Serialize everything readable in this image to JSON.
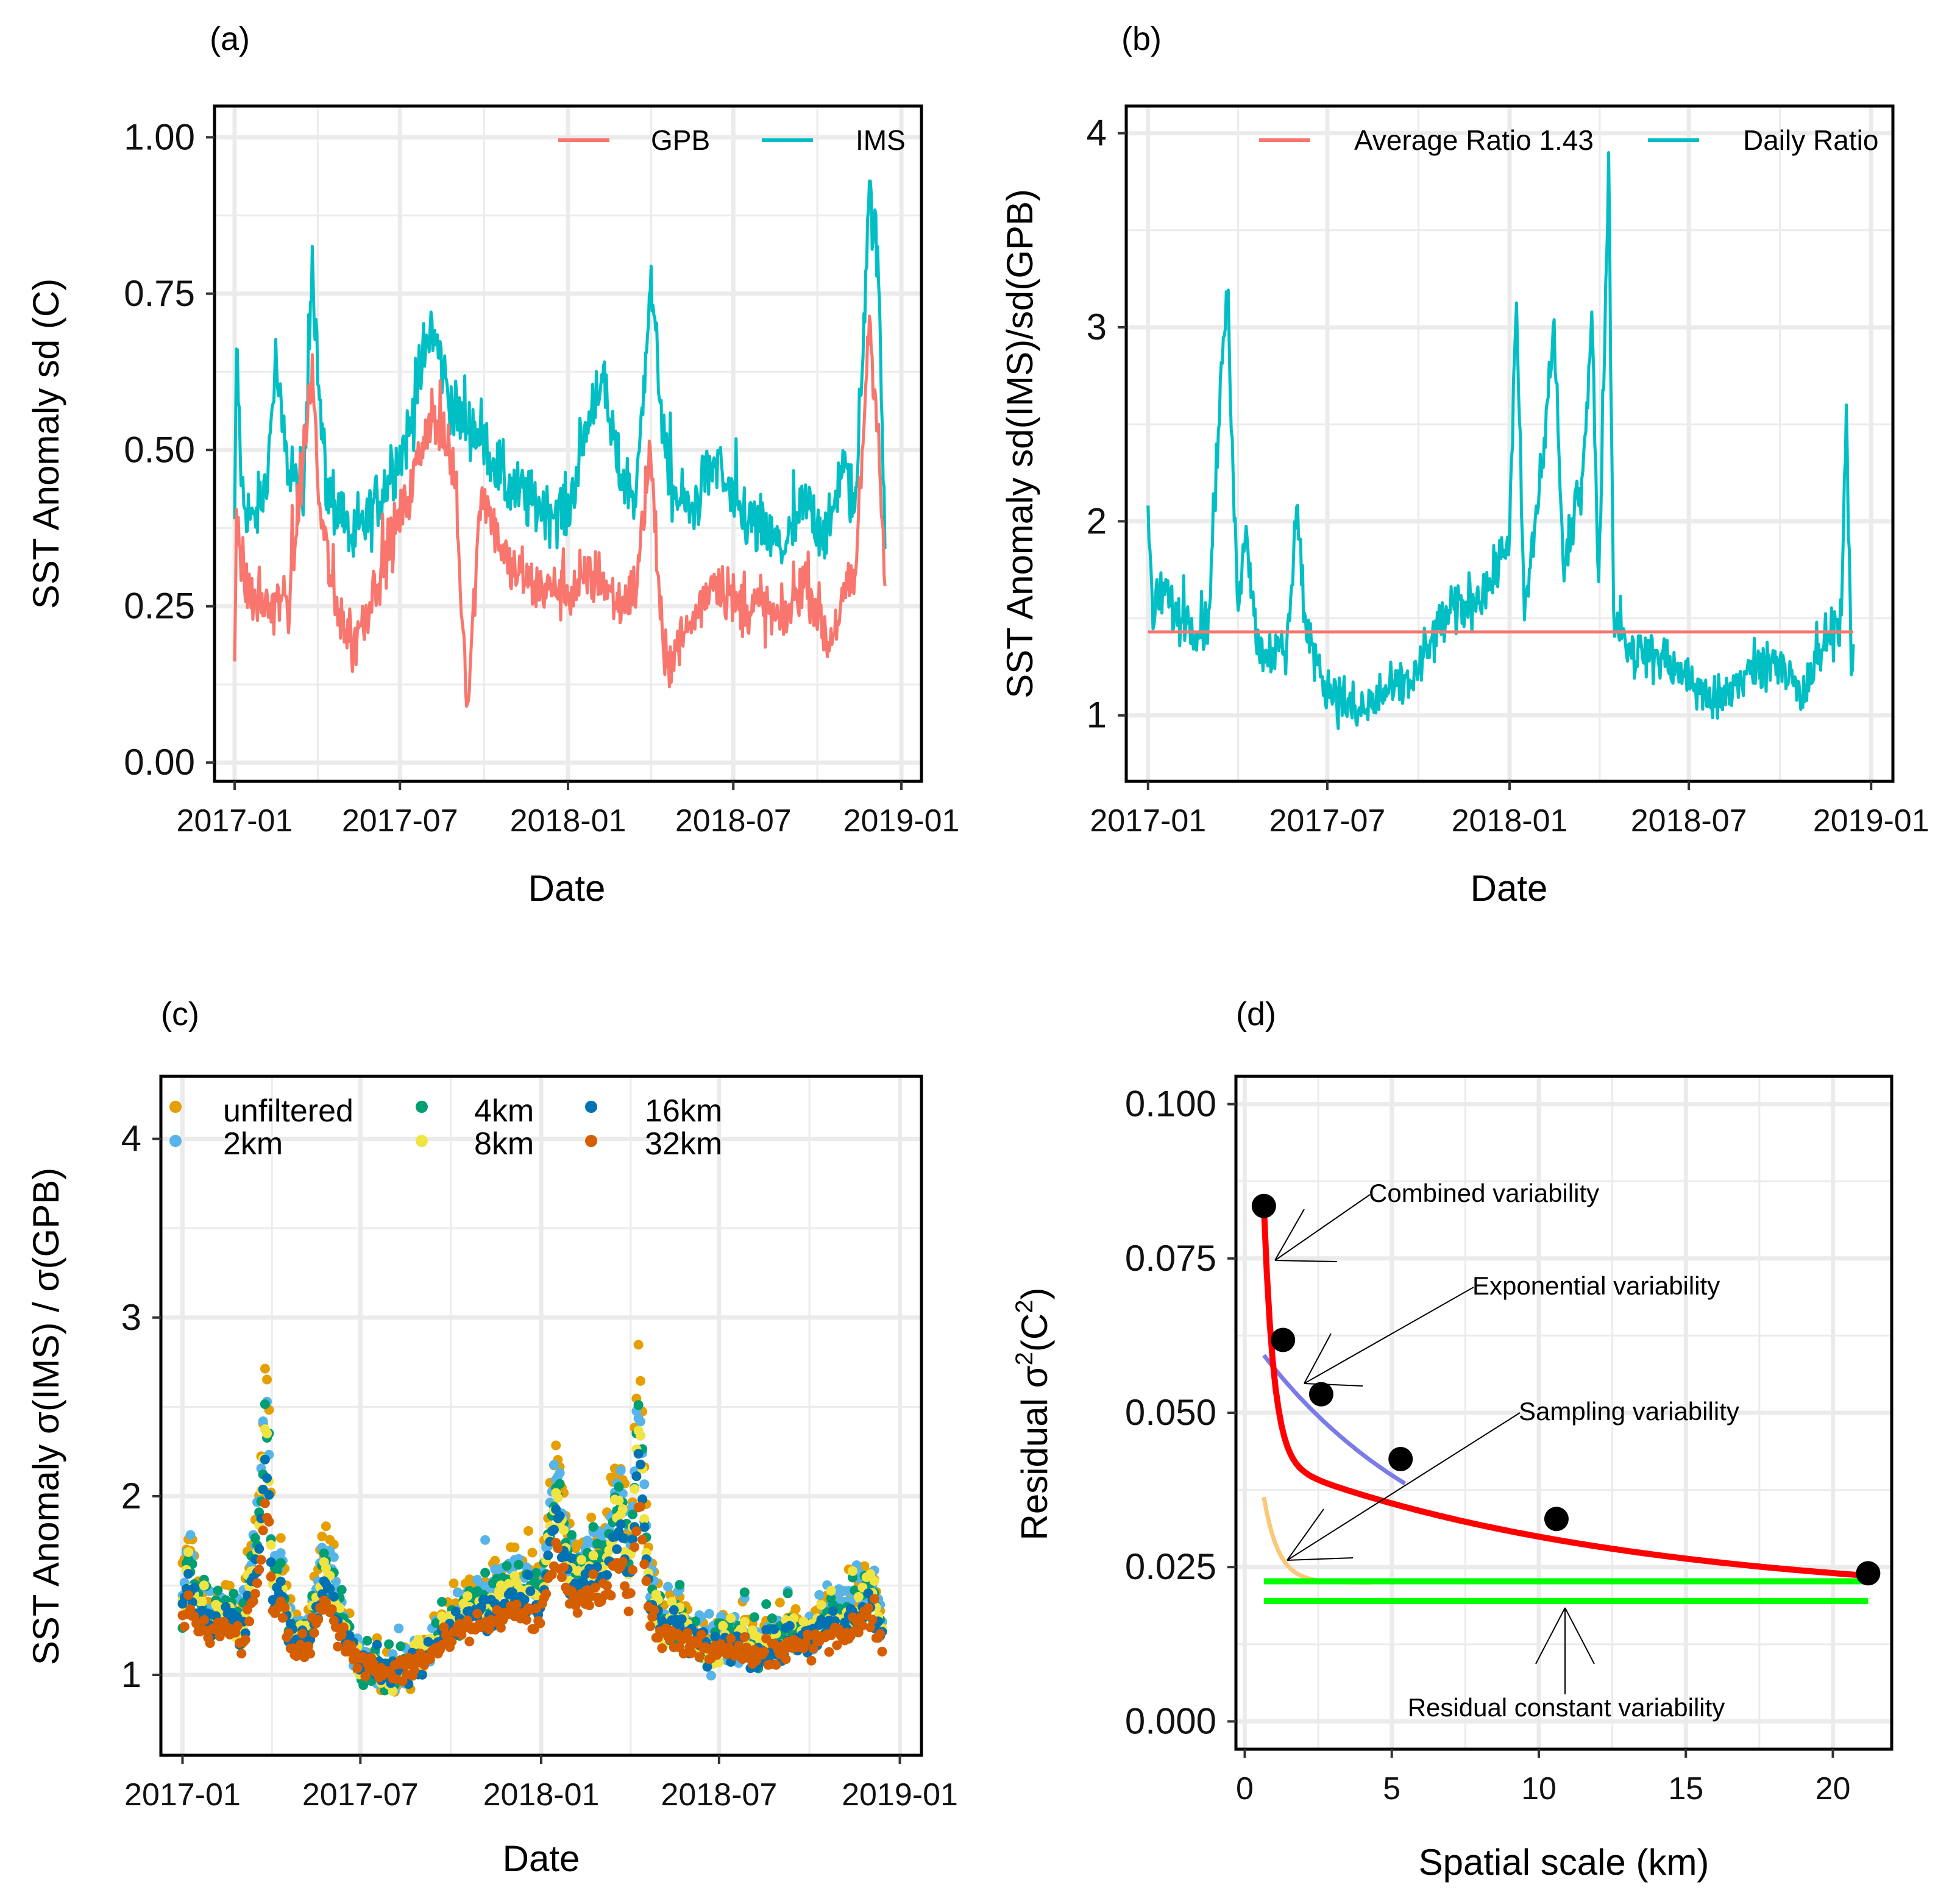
{
  "colors": {
    "gpb": "#F8766D",
    "ims": "#00BFC4",
    "grid": "#EBEBEB",
    "frame": "#000000",
    "scatter": {
      "unfiltered": "#E69F00",
      "2km": "#56B4E9",
      "4km": "#009E73",
      "8km": "#F0E442",
      "16km": "#0072B2",
      "32km": "#D55E00"
    },
    "combined": "#FF0000",
    "exponential": "#7B7BE8",
    "sampling": "#FAC878",
    "constant": "#00FF00"
  },
  "chart_data": [
    {
      "panel": "(a)",
      "type": "line",
      "xlabel": "Date",
      "ylabel": "SST Anomaly sd (C)",
      "xticks": [
        "2017-01",
        "2017-07",
        "2018-01",
        "2018-07",
        "2019-01"
      ],
      "yticks": [
        "0.00",
        "0.25",
        "0.50",
        "0.75",
        "1.00"
      ],
      "ylim": [
        -0.03,
        1.05
      ],
      "xlim_days": [
        -22,
        752
      ],
      "x_start": "2017-01-01",
      "legend": [
        "GPB",
        "IMS"
      ],
      "series": [
        {
          "name": "IMS",
          "anchors": [
            [
              0,
              0.34
            ],
            [
              2,
              0.67
            ],
            [
              8,
              0.43
            ],
            [
              20,
              0.38
            ],
            [
              35,
              0.45
            ],
            [
              45,
              0.64
            ],
            [
              55,
              0.49
            ],
            [
              75,
              0.41
            ],
            [
              85,
              0.81
            ],
            [
              92,
              0.6
            ],
            [
              100,
              0.44
            ],
            [
              130,
              0.35
            ],
            [
              150,
              0.4
            ],
            [
              170,
              0.46
            ],
            [
              190,
              0.52
            ],
            [
              215,
              0.7
            ],
            [
              240,
              0.56
            ],
            [
              270,
              0.52
            ],
            [
              300,
              0.44
            ],
            [
              330,
              0.41
            ],
            [
              365,
              0.4
            ],
            [
              380,
              0.5
            ],
            [
              400,
              0.62
            ],
            [
              420,
              0.47
            ],
            [
              440,
              0.42
            ],
            [
              455,
              0.77
            ],
            [
              475,
              0.44
            ],
            [
              500,
              0.4
            ],
            [
              525,
              0.48
            ],
            [
              550,
              0.4
            ],
            [
              575,
              0.37
            ],
            [
              600,
              0.34
            ],
            [
              625,
              0.41
            ],
            [
              650,
              0.36
            ],
            [
              665,
              0.48
            ],
            [
              680,
              0.4
            ],
            [
              695,
              0.92
            ],
            [
              705,
              0.78
            ],
            [
              712,
              0.36
            ]
          ],
          "noise": 0.05
        },
        {
          "name": "GPB",
          "anchors": [
            [
              0,
              0.17
            ],
            [
              2,
              0.42
            ],
            [
              8,
              0.3
            ],
            [
              20,
              0.26
            ],
            [
              40,
              0.25
            ],
            [
              60,
              0.26
            ],
            [
              85,
              0.63
            ],
            [
              92,
              0.42
            ],
            [
              110,
              0.25
            ],
            [
              130,
              0.18
            ],
            [
              150,
              0.27
            ],
            [
              170,
              0.35
            ],
            [
              190,
              0.42
            ],
            [
              215,
              0.56
            ],
            [
              240,
              0.47
            ],
            [
              255,
              0.09
            ],
            [
              270,
              0.44
            ],
            [
              300,
              0.31
            ],
            [
              330,
              0.28
            ],
            [
              365,
              0.27
            ],
            [
              400,
              0.3
            ],
            [
              420,
              0.25
            ],
            [
              440,
              0.28
            ],
            [
              455,
              0.5
            ],
            [
              470,
              0.15
            ],
            [
              500,
              0.22
            ],
            [
              525,
              0.3
            ],
            [
              550,
              0.25
            ],
            [
              575,
              0.25
            ],
            [
              600,
              0.22
            ],
            [
              625,
              0.3
            ],
            [
              650,
              0.19
            ],
            [
              665,
              0.25
            ],
            [
              680,
              0.3
            ],
            [
              695,
              0.71
            ],
            [
              705,
              0.52
            ],
            [
              712,
              0.26
            ]
          ],
          "noise": 0.045
        }
      ]
    },
    {
      "panel": "(b)",
      "type": "line",
      "xlabel": "Date",
      "ylabel": "SST Anomaly sd(IMS)/sd(GPB)",
      "xticks": [
        "2017-01",
        "2017-07",
        "2018-01",
        "2018-07",
        "2019-01"
      ],
      "yticks": [
        "1",
        "2",
        "3",
        "4"
      ],
      "ylim": [
        0.66,
        4.14
      ],
      "xlim_days": [
        -22,
        752
      ],
      "x_start": "2017-01-01",
      "legend": [
        "Average Ratio 1.43",
        "Daily Ratio"
      ],
      "average_ratio": 1.43,
      "series": [
        {
          "name": "Daily Ratio",
          "anchors": [
            [
              0,
              2.03
            ],
            [
              5,
              1.5
            ],
            [
              15,
              1.65
            ],
            [
              30,
              1.5
            ],
            [
              60,
              1.45
            ],
            [
              75,
              2.85
            ],
            [
              80,
              3.15
            ],
            [
              90,
              1.6
            ],
            [
              100,
              1.95
            ],
            [
              110,
              1.35
            ],
            [
              140,
              1.3
            ],
            [
              150,
              2.1
            ],
            [
              160,
              1.4
            ],
            [
              180,
              1.15
            ],
            [
              210,
              1.0
            ],
            [
              240,
              1.1
            ],
            [
              270,
              1.2
            ],
            [
              300,
              1.5
            ],
            [
              330,
              1.6
            ],
            [
              350,
              1.7
            ],
            [
              365,
              1.95
            ],
            [
              372,
              3.1
            ],
            [
              380,
              1.5
            ],
            [
              400,
              2.4
            ],
            [
              410,
              3.0
            ],
            [
              420,
              1.7
            ],
            [
              440,
              2.3
            ],
            [
              448,
              3.1
            ],
            [
              455,
              1.6
            ],
            [
              465,
              3.85
            ],
            [
              470,
              1.5
            ],
            [
              490,
              1.3
            ],
            [
              520,
              1.3
            ],
            [
              540,
              1.2
            ],
            [
              560,
              1.1
            ],
            [
              575,
              1.05
            ],
            [
              600,
              1.2
            ],
            [
              625,
              1.25
            ],
            [
              640,
              1.3
            ],
            [
              660,
              1.05
            ],
            [
              680,
              1.35
            ],
            [
              700,
              1.5
            ],
            [
              705,
              2.58
            ],
            [
              710,
              1.2
            ],
            [
              715,
              1.18
            ]
          ],
          "noise": 0.13
        }
      ]
    },
    {
      "panel": "(c)",
      "type": "scatter",
      "xlabel": "Date",
      "ylabel": "SST Anomaly σ(IMS) / σ(GPB)",
      "xticks": [
        "2017-01",
        "2017-07",
        "2018-01",
        "2018-07",
        "2019-01"
      ],
      "yticks": [
        "1",
        "2",
        "3",
        "4"
      ],
      "ylim": [
        0.55,
        4.35
      ],
      "xlim_days": [
        -22,
        752
      ],
      "x_start": "2017-01-01",
      "legend": [
        "unfiltered",
        "2km",
        "4km",
        "8km",
        "16km",
        "32km"
      ],
      "base_anchors": [
        [
          0,
          1.45
        ],
        [
          5,
          1.8
        ],
        [
          15,
          1.5
        ],
        [
          30,
          1.4
        ],
        [
          50,
          1.45
        ],
        [
          60,
          1.3
        ],
        [
          78,
          2.0
        ],
        [
          85,
          2.8
        ],
        [
          92,
          1.6
        ],
        [
          100,
          1.7
        ],
        [
          110,
          1.25
        ],
        [
          130,
          1.3
        ],
        [
          145,
          1.8
        ],
        [
          160,
          1.4
        ],
        [
          180,
          1.1
        ],
        [
          210,
          1.0
        ],
        [
          240,
          1.1
        ],
        [
          260,
          1.25
        ],
        [
          280,
          1.4
        ],
        [
          300,
          1.5
        ],
        [
          320,
          1.55
        ],
        [
          340,
          1.6
        ],
        [
          365,
          1.55
        ],
        [
          380,
          2.3
        ],
        [
          395,
          1.65
        ],
        [
          410,
          1.75
        ],
        [
          430,
          1.8
        ],
        [
          445,
          2.2
        ],
        [
          455,
          1.75
        ],
        [
          465,
          2.8
        ],
        [
          475,
          1.55
        ],
        [
          490,
          1.35
        ],
        [
          505,
          1.4
        ],
        [
          520,
          1.25
        ],
        [
          540,
          1.2
        ],
        [
          560,
          1.25
        ],
        [
          580,
          1.2
        ],
        [
          600,
          1.2
        ],
        [
          620,
          1.3
        ],
        [
          640,
          1.25
        ],
        [
          655,
          1.4
        ],
        [
          680,
          1.45
        ],
        [
          700,
          1.6
        ],
        [
          712,
          1.3
        ]
      ],
      "series": [
        {
          "name": "unfiltered",
          "scale": 1.0
        },
        {
          "name": "2km",
          "scale": 0.92
        },
        {
          "name": "4km",
          "scale": 0.84
        },
        {
          "name": "8km",
          "scale": 0.78
        },
        {
          "name": "16km",
          "scale": 0.7
        },
        {
          "name": "32km",
          "scale": 0.55
        }
      ]
    },
    {
      "panel": "(d)",
      "type": "line",
      "xlabel": "Spatial scale (km)",
      "ylabel": "Residual σ²(C²)",
      "xticks": [
        "0",
        "5",
        "10",
        "15",
        "20"
      ],
      "xtick_values": [
        0,
        5,
        10,
        15,
        20
      ],
      "yticks": [
        "0.000",
        "0.025",
        "0.050",
        "0.075",
        "0.100"
      ],
      "ytick_values": [
        0,
        0.025,
        0.05,
        0.075,
        0.1
      ],
      "xlim": [
        -0.3,
        22.0
      ],
      "ylim": [
        -0.0045,
        0.1045
      ],
      "points": [
        {
          "x": 0.65,
          "y": 0.0835
        },
        {
          "x": 1.3,
          "y": 0.0618
        },
        {
          "x": 2.6,
          "y": 0.053
        },
        {
          "x": 5.3,
          "y": 0.0425
        },
        {
          "x": 10.6,
          "y": 0.0328
        },
        {
          "x": 21.2,
          "y": 0.024
        }
      ],
      "curves": {
        "combined": {
          "a": 0.0195,
          "b": 0.024,
          "c": 0.09,
          "d": 3.0,
          "e": 0.36
        },
        "exponential": {
          "x_range": [
            0.65,
            5.5
          ]
        },
        "sampling": {
          "x_range": [
            0.65,
            4.3
          ]
        },
        "constant_upper": 0.0227,
        "constant_lower": 0.0195
      },
      "annotations": [
        "Combined variability",
        "Exponential variability",
        "Sampling variability",
        "Residual constant variability"
      ]
    }
  ]
}
